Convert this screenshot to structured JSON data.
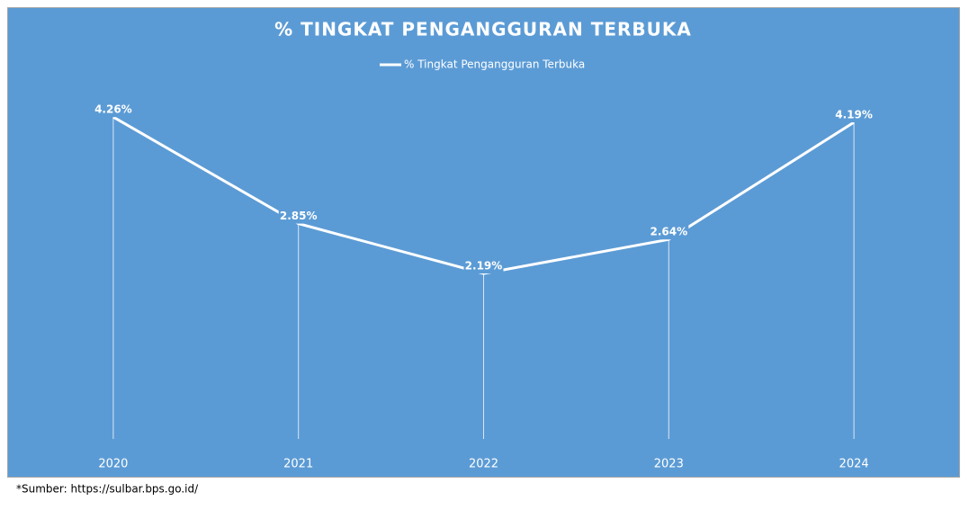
{
  "chart_data": {
    "type": "line",
    "title": "% TINGKAT PENGANGGURAN TERBUKA",
    "categories": [
      "2020",
      "2021",
      "2022",
      "2023",
      "2024"
    ],
    "series": [
      {
        "name": "% Tingkat Pengangguran Terbuka",
        "color": "#ffffff",
        "values": [
          4.26,
          2.85,
          2.19,
          2.64,
          4.19
        ],
        "value_labels": [
          "4.26%",
          "2.85%",
          "2.19%",
          "2.64%",
          "4.19%"
        ]
      }
    ],
    "ylim": [
      0,
      4.5
    ],
    "drop_lines": true,
    "legend": "top"
  },
  "source": "*Sumber: https://sulbar.bps.go.id/"
}
